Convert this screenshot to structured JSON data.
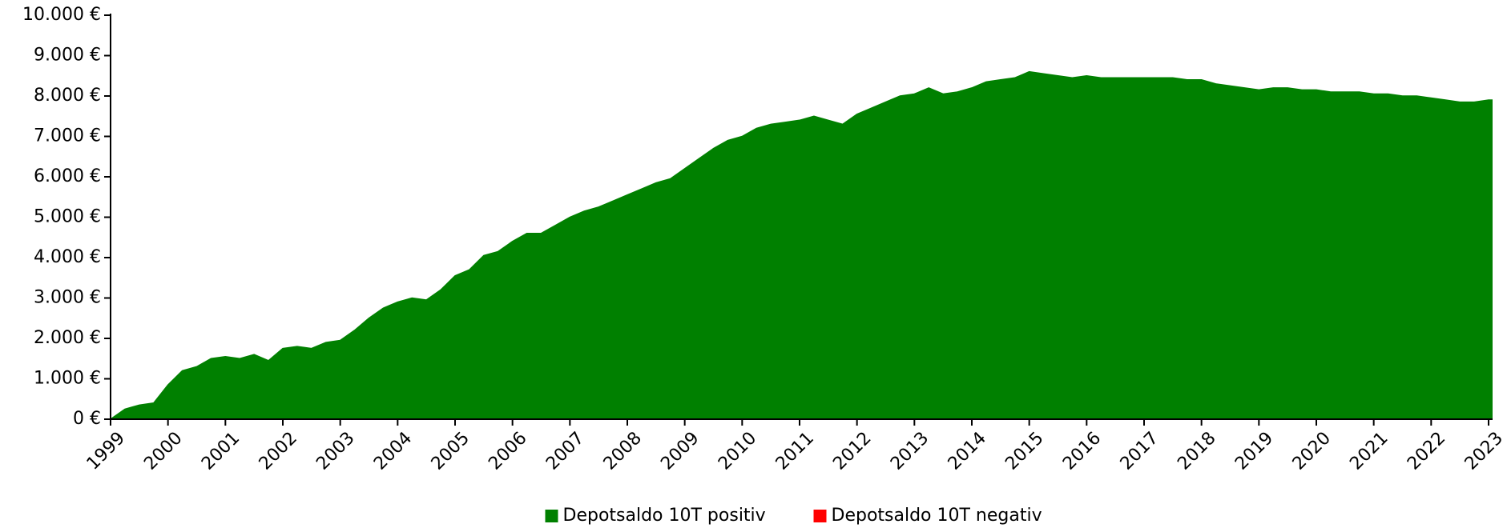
{
  "chart_data": {
    "type": "area",
    "x": [
      1999,
      1999.25,
      1999.5,
      1999.75,
      2000,
      2000.25,
      2000.5,
      2000.75,
      2001,
      2001.25,
      2001.5,
      2001.75,
      2002,
      2002.25,
      2002.5,
      2002.75,
      2003,
      2003.25,
      2003.5,
      2003.75,
      2004,
      2004.25,
      2004.5,
      2004.75,
      2005,
      2005.25,
      2005.5,
      2005.75,
      2006,
      2006.25,
      2006.5,
      2006.75,
      2007,
      2007.25,
      2007.5,
      2007.75,
      2008,
      2008.25,
      2008.5,
      2008.75,
      2009,
      2009.25,
      2009.5,
      2009.75,
      2010,
      2010.25,
      2010.5,
      2010.75,
      2011,
      2011.25,
      2011.5,
      2011.75,
      2012,
      2012.25,
      2012.5,
      2012.75,
      2013,
      2013.25,
      2013.5,
      2013.75,
      2014,
      2014.25,
      2014.5,
      2014.75,
      2015,
      2015.25,
      2015.5,
      2015.75,
      2016,
      2016.25,
      2016.5,
      2016.75,
      2017,
      2017.25,
      2017.5,
      2017.75,
      2018,
      2018.25,
      2018.5,
      2018.75,
      2019,
      2019.25,
      2019.5,
      2019.75,
      2020,
      2020.25,
      2020.5,
      2020.75,
      2021,
      2021.25,
      2021.5,
      2021.75,
      2022,
      2022.25,
      2022.5,
      2022.75,
      2023,
      2023.07
    ],
    "series": [
      {
        "name": "Depotsaldo 10T positiv",
        "color": "#008000",
        "values": [
          0,
          250,
          350,
          400,
          850,
          1200,
          1300,
          1500,
          1550,
          1500,
          1600,
          1450,
          1750,
          1800,
          1750,
          1900,
          1950,
          2200,
          2500,
          2750,
          2900,
          3000,
          2950,
          3200,
          3550,
          3700,
          4050,
          4150,
          4400,
          4600,
          4600,
          4800,
          5000,
          5150,
          5250,
          5400,
          5550,
          5700,
          5850,
          5950,
          6200,
          6450,
          6700,
          6900,
          7000,
          7200,
          7300,
          7350,
          7400,
          7500,
          7400,
          7300,
          7550,
          7700,
          7850,
          8000,
          8050,
          8200,
          8050,
          8100,
          8200,
          8350,
          8400,
          8450,
          8600,
          8550,
          8500,
          8450,
          8500,
          8450,
          8450,
          8450,
          8450,
          8450,
          8450,
          8400,
          8400,
          8300,
          8250,
          8200,
          8150,
          8200,
          8200,
          8150,
          8150,
          8100,
          8100,
          8100,
          8050,
          8050,
          8000,
          8000,
          7950,
          7900,
          7850,
          7850,
          7900,
          7900
        ]
      },
      {
        "name": "Depotsaldo 10T negativ",
        "color": "#ff0000",
        "values": [
          null,
          null,
          null,
          null,
          null,
          null,
          null,
          null,
          null,
          null,
          null,
          null,
          null,
          null,
          null,
          null,
          null,
          null,
          null,
          null,
          null,
          null,
          null,
          null,
          null,
          null,
          null,
          null,
          null,
          null,
          null,
          null,
          null,
          null,
          null,
          null,
          null,
          null,
          null,
          null,
          null,
          null,
          null,
          null,
          null,
          null,
          null,
          null,
          null,
          null,
          null,
          null,
          null,
          null,
          null,
          null,
          null,
          null,
          null,
          null,
          null,
          null,
          null,
          null,
          null,
          null,
          null,
          null,
          null,
          null,
          null,
          null,
          null,
          null,
          null,
          null,
          null,
          null,
          null,
          null,
          null,
          null,
          null,
          null,
          null,
          null,
          null,
          null,
          null,
          null,
          null,
          null,
          null,
          null,
          null,
          null,
          null,
          null
        ]
      }
    ],
    "xlim": [
      1999,
      2023.07
    ],
    "xticks": [
      1999,
      2000,
      2001,
      2002,
      2003,
      2004,
      2005,
      2006,
      2007,
      2008,
      2009,
      2010,
      2011,
      2012,
      2013,
      2014,
      2015,
      2016,
      2017,
      2018,
      2019,
      2020,
      2021,
      2022,
      2023
    ],
    "ylim": [
      0,
      10000
    ],
    "yticks": [
      {
        "value": 0,
        "label": "0 €"
      },
      {
        "value": 1000,
        "label": "1.000 €"
      },
      {
        "value": 2000,
        "label": "2.000 €"
      },
      {
        "value": 3000,
        "label": "3.000 €"
      },
      {
        "value": 4000,
        "label": "4.000 €"
      },
      {
        "value": 5000,
        "label": "5.000 €"
      },
      {
        "value": 6000,
        "label": "6.000 €"
      },
      {
        "value": 7000,
        "label": "7.000 €"
      },
      {
        "value": 8000,
        "label": "8.000 €"
      },
      {
        "value": 9000,
        "label": "9.000 €"
      },
      {
        "value": 10000,
        "label": "10.000 €"
      }
    ],
    "legend": "bottom"
  }
}
